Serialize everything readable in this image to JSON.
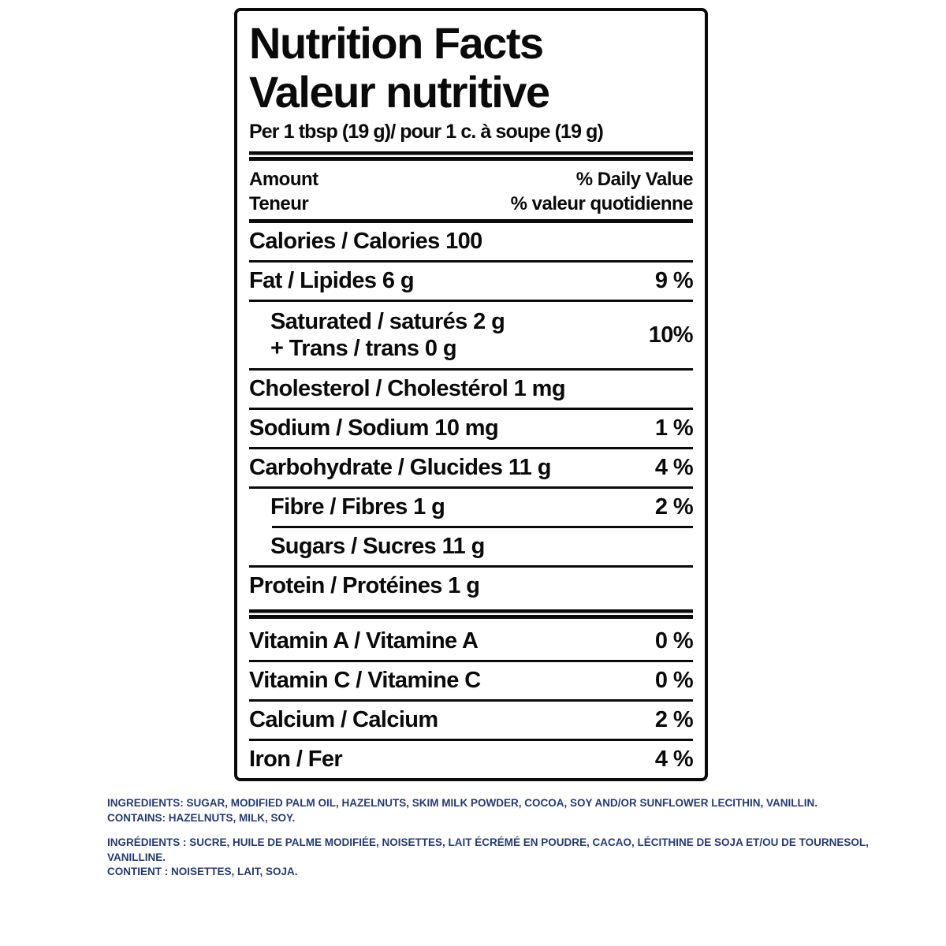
{
  "label": {
    "title_en": "Nutrition Facts",
    "title_fr": "Valeur nutritive",
    "serving": "Per 1 tbsp (19 g)/ pour 1 c. à soupe (19 g)",
    "columns": {
      "amount_en": "Amount",
      "amount_fr": "Teneur",
      "dv_en": "% Daily Value",
      "dv_fr": "% valeur quotidienne"
    },
    "rows": [
      {
        "text": "Calories / Calories 100",
        "dv": ""
      },
      {
        "text": "Fat / Lipides 6 g",
        "dv": "9 %"
      },
      {
        "line1": "Saturated / saturés 2 g",
        "line2": "+ Trans / trans 0 g",
        "dv": "10%"
      },
      {
        "text": "Cholesterol / Cholestérol 1 mg",
        "dv": ""
      },
      {
        "text": "Sodium / Sodium 10 mg",
        "dv": "1 %"
      },
      {
        "text": "Carbohydrate / Glucides 11 g",
        "dv": "4 %"
      },
      {
        "text": "Fibre / Fibres 1 g",
        "dv": "2 %"
      },
      {
        "text": "Sugars / Sucres 11 g",
        "dv": ""
      },
      {
        "text": "Protein / Protéines 1 g",
        "dv": ""
      },
      {
        "text": "Vitamin A / Vitamine A",
        "dv": "0 %"
      },
      {
        "text": "Vitamin C / Vitamine C",
        "dv": "0 %"
      },
      {
        "text": "Calcium / Calcium",
        "dv": "2 %"
      },
      {
        "text": "Iron / Fer",
        "dv": "4 %"
      }
    ],
    "text_color": "#0a0a0a"
  },
  "ingredients": {
    "text_color": "#263a6e",
    "en": {
      "lines": [
        "INGREDIENTS: SUGAR, MODIFIED PALM OIL, HAZELNUTS, SKIM MILK POWDER, COCOA, SOY AND/OR SUNFLOWER LECITHIN, VANILLIN.",
        "CONTAINS: HAZELNUTS, MILK, SOY."
      ]
    },
    "fr": {
      "lines": [
        "INGRÉDIENTS : SUCRE, HUILE DE PALME MODIFIÉE, NOISETTES, LAIT ÉCRÉMÉ EN POUDRE, CACAO, LÉCITHINE DE SOJA ET/OU DE TOURNESOL,",
        "VANILLINE.",
        "CONTIENT : NOISETTES, LAIT, SOJA."
      ]
    }
  }
}
